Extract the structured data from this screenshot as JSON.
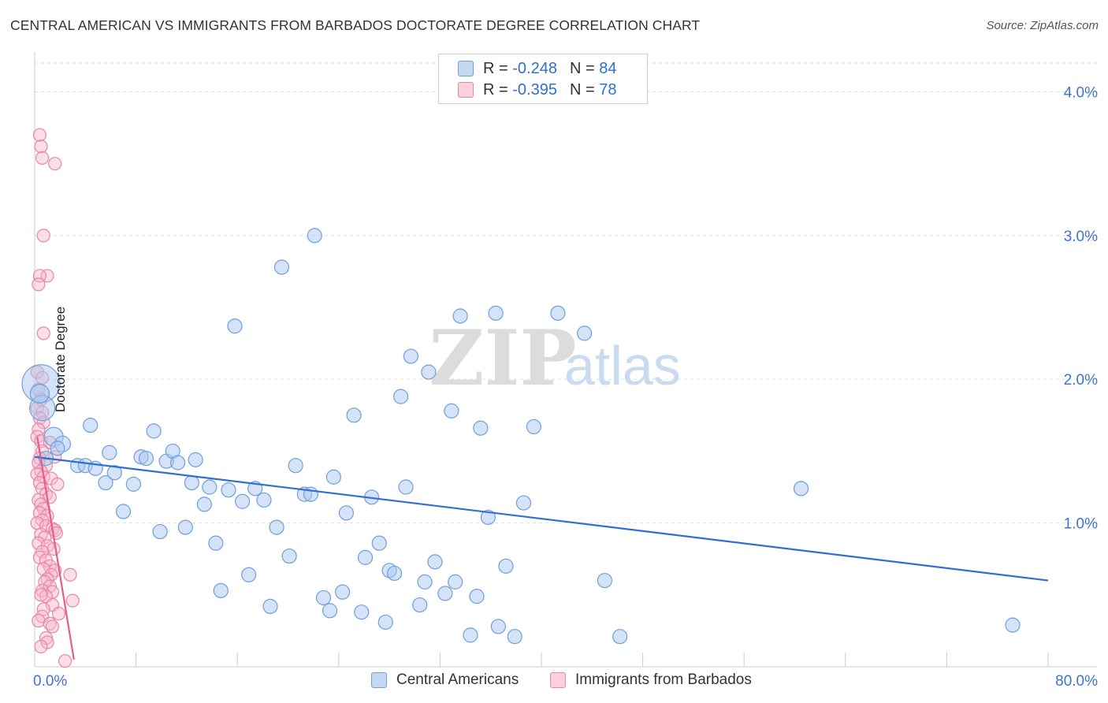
{
  "header": {
    "title": "CENTRAL AMERICAN VS IMMIGRANTS FROM BARBADOS DOCTORATE DEGREE CORRELATION CHART",
    "source": "Source: ZipAtlas.com"
  },
  "legend": {
    "rows": [
      {
        "r_label": "R =",
        "r_value": "-0.248",
        "n_label": "N =",
        "n_value": "84"
      },
      {
        "r_label": "R =",
        "r_value": "-0.395",
        "n_label": "N =",
        "n_value": "78"
      }
    ]
  },
  "bottom_legend": {
    "series1": "Central Americans",
    "series2": "Immigrants from Barbados"
  },
  "watermark": {
    "zip": "ZIP",
    "atlas": "atlas"
  },
  "colors": {
    "blue_fill": "#a9c8ef",
    "blue_stroke": "#6f9fd8",
    "blue_line": "#2f6fd0",
    "pink_fill": "#f6b6c9",
    "pink_stroke": "#e886a6",
    "pink_line": "#e55d8c",
    "axis_label": "#3f74c9",
    "grid": "#dddddd"
  },
  "chart_data": {
    "type": "scatter",
    "title": "CENTRAL AMERICAN VS IMMIGRANTS FROM BARBADOS DOCTORATE DEGREE CORRELATION CHART",
    "xlabel": "",
    "ylabel": "Doctorate Degree",
    "xlim": [
      0,
      80
    ],
    "ylim": [
      0,
      4.2
    ],
    "x_tick_labels": [
      "0.0%",
      "80.0%"
    ],
    "y_ticks": [
      1.0,
      2.0,
      3.0,
      4.0
    ],
    "y_tick_labels": [
      "1.0%",
      "2.0%",
      "3.0%",
      "4.0%"
    ],
    "grid": "horizontal dashed",
    "legend_position": "top-center",
    "series": [
      {
        "name": "Central Americans",
        "r": -0.248,
        "n": 84,
        "trend": [
          [
            0,
            1.46
          ],
          [
            80,
            0.6
          ]
        ],
        "points": [
          [
            0.5,
            1.97,
            24
          ],
          [
            0.6,
            1.8,
            16
          ],
          [
            0.4,
            1.9,
            12
          ],
          [
            1.5,
            1.6,
            12
          ],
          [
            2.2,
            1.55,
            10
          ],
          [
            1.8,
            1.52,
            9
          ],
          [
            4.4,
            1.68,
            9
          ],
          [
            3.4,
            1.4,
            9
          ],
          [
            4.0,
            1.4,
            9
          ],
          [
            4.8,
            1.38,
            9
          ],
          [
            5.6,
            1.28,
            9
          ],
          [
            5.9,
            1.49,
            9
          ],
          [
            6.3,
            1.35,
            9
          ],
          [
            7.0,
            1.08,
            9
          ],
          [
            7.8,
            1.27,
            9
          ],
          [
            8.4,
            1.46,
            9
          ],
          [
            8.8,
            1.45,
            9
          ],
          [
            9.4,
            1.64,
            9
          ],
          [
            9.9,
            0.94,
            9
          ],
          [
            10.4,
            1.43,
            9
          ],
          [
            10.9,
            1.5,
            9
          ],
          [
            11.3,
            1.42,
            9
          ],
          [
            11.9,
            0.97,
            9
          ],
          [
            12.4,
            1.28,
            9
          ],
          [
            12.7,
            1.44,
            9
          ],
          [
            13.4,
            1.13,
            9
          ],
          [
            13.8,
            1.25,
            9
          ],
          [
            14.3,
            0.86,
            9
          ],
          [
            14.7,
            0.53,
            9
          ],
          [
            15.3,
            1.23,
            9
          ],
          [
            15.8,
            2.37,
            9
          ],
          [
            16.4,
            1.15,
            9
          ],
          [
            16.9,
            0.64,
            9
          ],
          [
            17.4,
            1.24,
            9
          ],
          [
            18.1,
            1.16,
            9
          ],
          [
            18.6,
            0.42,
            9
          ],
          [
            19.1,
            0.97,
            9
          ],
          [
            19.5,
            2.78,
            9
          ],
          [
            20.1,
            0.77,
            9
          ],
          [
            20.6,
            1.4,
            9
          ],
          [
            21.3,
            1.2,
            9
          ],
          [
            21.8,
            1.2,
            9
          ],
          [
            22.1,
            3.0,
            9
          ],
          [
            22.8,
            0.48,
            9
          ],
          [
            23.3,
            0.39,
            9
          ],
          [
            23.6,
            1.32,
            9
          ],
          [
            24.3,
            0.52,
            9
          ],
          [
            24.6,
            1.07,
            9
          ],
          [
            25.2,
            1.75,
            9
          ],
          [
            25.8,
            0.38,
            9
          ],
          [
            26.1,
            0.76,
            9
          ],
          [
            26.6,
            1.18,
            9
          ],
          [
            27.2,
            0.86,
            9
          ],
          [
            27.7,
            0.31,
            9
          ],
          [
            28.0,
            0.67,
            9
          ],
          [
            28.4,
            0.65,
            9
          ],
          [
            28.9,
            1.88,
            9
          ],
          [
            29.3,
            1.25,
            9
          ],
          [
            29.7,
            2.16,
            9
          ],
          [
            30.4,
            0.43,
            9
          ],
          [
            30.8,
            0.59,
            9
          ],
          [
            31.1,
            2.05,
            9
          ],
          [
            31.6,
            0.73,
            9
          ],
          [
            32.4,
            0.51,
            9
          ],
          [
            32.9,
            1.78,
            9
          ],
          [
            33.2,
            0.59,
            9
          ],
          [
            33.6,
            2.44,
            9
          ],
          [
            34.4,
            0.22,
            9
          ],
          [
            34.9,
            0.49,
            9
          ],
          [
            35.2,
            1.66,
            9
          ],
          [
            35.8,
            1.04,
            9
          ],
          [
            36.4,
            2.46,
            9
          ],
          [
            36.6,
            0.28,
            9
          ],
          [
            37.2,
            0.7,
            9
          ],
          [
            37.9,
            0.21,
            9
          ],
          [
            38.6,
            1.14,
            9
          ],
          [
            39.4,
            1.67,
            9
          ],
          [
            41.3,
            2.46,
            9
          ],
          [
            43.4,
            2.32,
            9
          ],
          [
            45.0,
            0.6,
            9
          ],
          [
            46.2,
            0.21,
            9
          ],
          [
            60.5,
            1.24,
            9
          ],
          [
            77.2,
            0.29,
            9
          ],
          [
            0.9,
            1.45,
            9
          ]
        ]
      },
      {
        "name": "Immigrants from Barbados",
        "r": -0.395,
        "n": 78,
        "trend": [
          [
            0.2,
            1.6
          ],
          [
            3.1,
            0.05
          ]
        ],
        "points": [
          [
            0.4,
            3.7,
            8
          ],
          [
            0.5,
            3.62,
            8
          ],
          [
            0.6,
            3.54,
            8
          ],
          [
            1.6,
            3.5,
            8
          ],
          [
            0.7,
            3.0,
            8
          ],
          [
            1.0,
            2.72,
            8
          ],
          [
            0.4,
            2.72,
            8
          ],
          [
            0.3,
            2.66,
            8
          ],
          [
            0.7,
            2.32,
            8
          ],
          [
            0.2,
            2.05,
            8
          ],
          [
            0.6,
            2.01,
            8
          ],
          [
            0.3,
            1.93,
            8
          ],
          [
            0.5,
            1.86,
            8
          ],
          [
            0.2,
            1.8,
            8
          ],
          [
            0.6,
            1.77,
            8
          ],
          [
            0.4,
            1.73,
            8
          ],
          [
            0.7,
            1.7,
            8
          ],
          [
            0.3,
            1.65,
            8
          ],
          [
            0.2,
            1.6,
            8
          ],
          [
            0.5,
            1.57,
            8
          ],
          [
            1.2,
            1.56,
            8
          ],
          [
            0.6,
            1.5,
            8
          ],
          [
            0.4,
            1.45,
            8
          ],
          [
            1.6,
            1.46,
            8
          ],
          [
            0.3,
            1.42,
            8
          ],
          [
            0.9,
            1.4,
            8
          ],
          [
            0.5,
            1.36,
            8
          ],
          [
            0.2,
            1.34,
            8
          ],
          [
            0.7,
            1.32,
            8
          ],
          [
            1.3,
            1.31,
            8
          ],
          [
            0.4,
            1.28,
            8
          ],
          [
            1.8,
            1.27,
            8
          ],
          [
            0.6,
            1.24,
            8
          ],
          [
            0.9,
            1.2,
            8
          ],
          [
            1.2,
            1.18,
            8
          ],
          [
            0.3,
            1.16,
            8
          ],
          [
            0.5,
            1.13,
            8
          ],
          [
            0.7,
            1.1,
            8
          ],
          [
            0.4,
            1.07,
            8
          ],
          [
            1.0,
            1.05,
            8
          ],
          [
            0.6,
            1.02,
            8
          ],
          [
            0.2,
            1.0,
            8
          ],
          [
            0.9,
            0.98,
            8
          ],
          [
            1.4,
            0.96,
            8
          ],
          [
            1.6,
            0.95,
            8
          ],
          [
            1.7,
            0.93,
            8
          ],
          [
            0.5,
            0.92,
            8
          ],
          [
            0.8,
            0.9,
            8
          ],
          [
            0.3,
            0.86,
            8
          ],
          [
            1.0,
            0.84,
            8
          ],
          [
            1.5,
            0.82,
            8
          ],
          [
            0.6,
            0.8,
            8
          ],
          [
            0.4,
            0.76,
            8
          ],
          [
            0.9,
            0.74,
            8
          ],
          [
            1.2,
            0.7,
            8
          ],
          [
            0.7,
            0.68,
            8
          ],
          [
            1.6,
            0.67,
            8
          ],
          [
            1.3,
            0.64,
            8
          ],
          [
            2.8,
            0.64,
            8
          ],
          [
            1.0,
            0.61,
            8
          ],
          [
            0.8,
            0.59,
            8
          ],
          [
            1.2,
            0.56,
            8
          ],
          [
            0.6,
            0.53,
            8
          ],
          [
            1.4,
            0.52,
            8
          ],
          [
            0.9,
            0.49,
            8
          ],
          [
            0.5,
            0.5,
            8
          ],
          [
            3.0,
            0.46,
            8
          ],
          [
            1.4,
            0.43,
            8
          ],
          [
            0.7,
            0.4,
            8
          ],
          [
            1.9,
            0.37,
            8
          ],
          [
            0.6,
            0.35,
            8
          ],
          [
            0.3,
            0.32,
            8
          ],
          [
            1.2,
            0.3,
            8
          ],
          [
            1.4,
            0.28,
            8
          ],
          [
            0.9,
            0.2,
            8
          ],
          [
            1.0,
            0.17,
            8
          ],
          [
            2.4,
            0.04,
            8
          ],
          [
            0.5,
            0.14,
            8
          ]
        ]
      }
    ]
  }
}
